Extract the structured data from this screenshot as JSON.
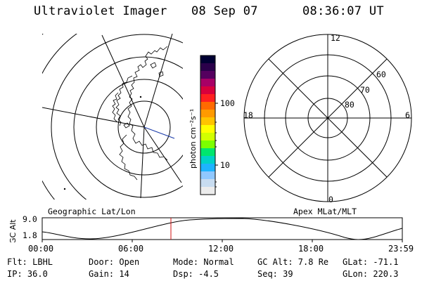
{
  "header": {
    "instrument": "Ultraviolet Imager",
    "date": "08 Sep 07",
    "time": "08:36:07 UT"
  },
  "colorbar": {
    "unit_label": "photon cm⁻²s⁻¹",
    "tick_labels": [
      "100",
      "10"
    ],
    "colors_top_to_bottom": [
      "#000033",
      "#2a004a",
      "#55005f",
      "#a80066",
      "#d8003c",
      "#ff2020",
      "#ff6a00",
      "#ff9a00",
      "#ffc400",
      "#ffff00",
      "#d2ff00",
      "#7cff00",
      "#00e66e",
      "#00d2c8",
      "#1eb4ff",
      "#90c8ff",
      "#c8dcf0",
      "#ececec"
    ]
  },
  "left_map": {
    "label": "Geographic Lat/Lon"
  },
  "right_map": {
    "label": "Apex MLat/MLT",
    "mlt_labels": {
      "top": "12",
      "left": "18",
      "right": "6",
      "bottom": "0"
    },
    "mlat_labels": [
      "60",
      "70",
      "80"
    ]
  },
  "altitude_strip": {
    "axis_label": "GC Alt",
    "y_ticks": [
      "9.0",
      "1.8"
    ],
    "x_ticks": [
      "00:00",
      "06:00",
      "12:00",
      "18:00",
      "23:59"
    ]
  },
  "status": {
    "flt": "Flt: LBHL",
    "ip": "IP: 36.0",
    "door": "Door: Open",
    "gain": "Gain: 14",
    "mode": "Mode: Normal",
    "dsp": "Dsp:   -4.5",
    "gc_alt": "GC Alt: 7.8 Re",
    "seq": "Seq: 39",
    "glat": "GLat: -71.1",
    "glon": "GLon: 220.3"
  }
}
